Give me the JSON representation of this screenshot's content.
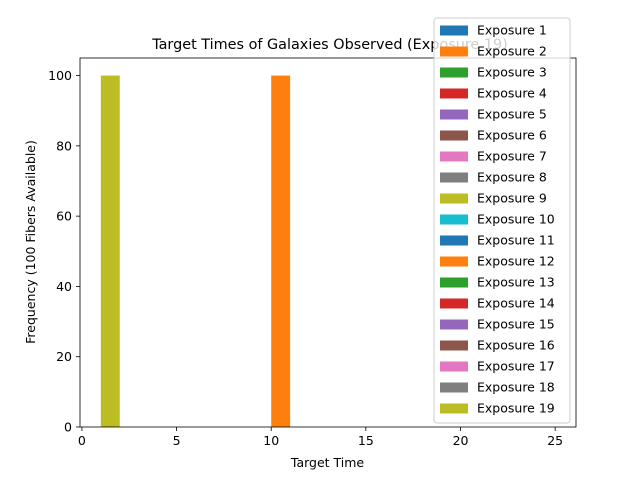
{
  "chart_data": {
    "type": "bar",
    "title": "Target Times of Galaxies Observed (Exposure 19)",
    "xlabel": "Target Time",
    "ylabel": "Frequency (100 Fibers Available)",
    "xlim": [
      -0.1,
      26.1
    ],
    "ylim": [
      0,
      105
    ],
    "xticks": [
      0,
      5,
      10,
      15,
      20,
      25
    ],
    "yticks": [
      0,
      20,
      40,
      60,
      80,
      100
    ],
    "grid": false,
    "legend_position": "top-right",
    "bars": [
      {
        "series": "Exposure 9",
        "x_start": 1.0,
        "x_end": 2.0,
        "value": 100,
        "color": "#bcbd22"
      },
      {
        "series": "Exposure 12",
        "x_start": 10.0,
        "x_end": 11.0,
        "value": 100,
        "color": "#ff7f0e"
      }
    ],
    "series": [
      {
        "name": "Exposure 1",
        "color": "#1f77b4"
      },
      {
        "name": "Exposure 2",
        "color": "#ff7f0e"
      },
      {
        "name": "Exposure 3",
        "color": "#2ca02c"
      },
      {
        "name": "Exposure 4",
        "color": "#d62728"
      },
      {
        "name": "Exposure 5",
        "color": "#9467bd"
      },
      {
        "name": "Exposure 6",
        "color": "#8c564b"
      },
      {
        "name": "Exposure 7",
        "color": "#e377c2"
      },
      {
        "name": "Exposure 8",
        "color": "#7f7f7f"
      },
      {
        "name": "Exposure 9",
        "color": "#bcbd22"
      },
      {
        "name": "Exposure 10",
        "color": "#17becf"
      },
      {
        "name": "Exposure 11",
        "color": "#1f77b4"
      },
      {
        "name": "Exposure 12",
        "color": "#ff7f0e"
      },
      {
        "name": "Exposure 13",
        "color": "#2ca02c"
      },
      {
        "name": "Exposure 14",
        "color": "#d62728"
      },
      {
        "name": "Exposure 15",
        "color": "#9467bd"
      },
      {
        "name": "Exposure 16",
        "color": "#8c564b"
      },
      {
        "name": "Exposure 17",
        "color": "#e377c2"
      },
      {
        "name": "Exposure 18",
        "color": "#7f7f7f"
      },
      {
        "name": "Exposure 19",
        "color": "#bcbd22"
      }
    ]
  }
}
